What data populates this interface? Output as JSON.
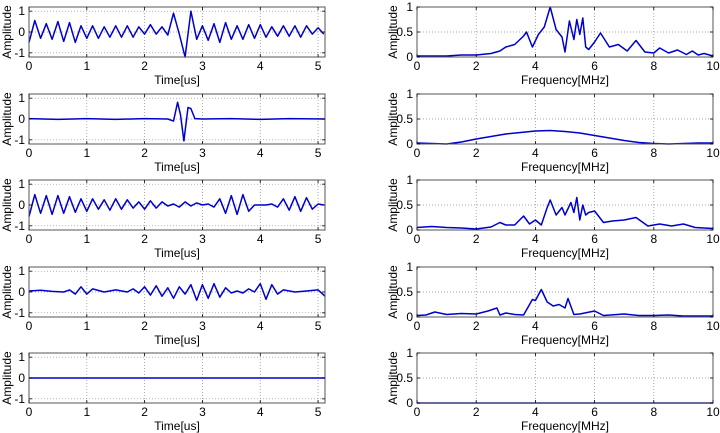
{
  "colors": {
    "line": "#0000cc",
    "axes": "#000000",
    "grid": "#888888",
    "background": "#ffffff"
  },
  "chart_data": [
    {
      "type": "line",
      "panel": "time-1",
      "xlabel": "Time[us]",
      "ylabel": "Amplitude",
      "xlim": [
        0,
        5.12
      ],
      "ylim": [
        -1.2,
        1.2
      ],
      "xticks": [
        0,
        1,
        2,
        3,
        4,
        5
      ],
      "yticks": [
        -1,
        0,
        1
      ],
      "yticklabels": [
        "-1",
        "0",
        "1"
      ],
      "grid": true,
      "description": "Continuous oscillation amplitude ~0.4-0.5 throughout with a large bipolar pulse near t=2.6-2.8us reaching +1 and -1.2",
      "x": [
        0,
        0.1,
        0.2,
        0.3,
        0.4,
        0.5,
        0.6,
        0.7,
        0.8,
        0.9,
        1.0,
        1.1,
        1.2,
        1.3,
        1.4,
        1.5,
        1.6,
        1.7,
        1.8,
        1.9,
        2.0,
        2.1,
        2.2,
        2.3,
        2.4,
        2.5,
        2.6,
        2.7,
        2.8,
        2.9,
        3.0,
        3.1,
        3.2,
        3.3,
        3.4,
        3.5,
        3.6,
        3.7,
        3.8,
        3.9,
        4.0,
        4.1,
        4.2,
        4.3,
        4.4,
        4.5,
        4.6,
        4.7,
        4.8,
        4.9,
        5.0,
        5.1
      ],
      "y": [
        -0.5,
        0.55,
        -0.3,
        0.4,
        -0.35,
        0.5,
        -0.45,
        0.45,
        -0.5,
        0.3,
        -0.3,
        0.3,
        -0.3,
        0.25,
        -0.25,
        0.3,
        -0.25,
        0.3,
        -0.25,
        0.25,
        -0.1,
        0.35,
        -0.1,
        0.25,
        -0.15,
        0.9,
        -0.1,
        -1.2,
        1.0,
        -0.35,
        0.3,
        -0.4,
        0.4,
        -0.5,
        0.45,
        -0.35,
        0.3,
        -0.35,
        0.35,
        -0.3,
        0.35,
        -0.25,
        0.25,
        -0.2,
        0.3,
        -0.2,
        0.3,
        -0.25,
        0.3,
        -0.1,
        0.2,
        -0.1
      ]
    },
    {
      "type": "line",
      "panel": "freq-1",
      "xlabel": "Frequency[MHz]",
      "ylabel": "Amplitude",
      "xlim": [
        0,
        10
      ],
      "ylim": [
        0,
        1
      ],
      "xticks": [
        0,
        2,
        4,
        6,
        8,
        10
      ],
      "yticks": [
        0,
        0.5,
        1
      ],
      "yticklabels": [
        "0",
        "0.5",
        "1"
      ],
      "grid": true,
      "x": [
        0,
        0.5,
        1,
        1.5,
        2,
        2.5,
        2.8,
        3.0,
        3.3,
        3.6,
        3.7,
        3.9,
        4.1,
        4.3,
        4.5,
        4.7,
        4.9,
        5.0,
        5.15,
        5.3,
        5.4,
        5.5,
        5.6,
        5.7,
        5.8,
        6.0,
        6.2,
        6.5,
        6.8,
        7.1,
        7.4,
        7.7,
        8.0,
        8.2,
        8.5,
        8.8,
        9.1,
        9.3,
        9.5,
        9.7,
        10
      ],
      "y": [
        0.02,
        0.02,
        0.02,
        0.04,
        0.04,
        0.07,
        0.12,
        0.2,
        0.25,
        0.42,
        0.5,
        0.2,
        0.45,
        0.6,
        1.0,
        0.55,
        0.4,
        0.1,
        0.72,
        0.35,
        0.75,
        0.45,
        0.78,
        0.2,
        0.15,
        0.3,
        0.48,
        0.2,
        0.25,
        0.12,
        0.33,
        0.1,
        0.08,
        0.18,
        0.08,
        0.14,
        0.05,
        0.12,
        0.04,
        0.07,
        0.02
      ]
    },
    {
      "type": "line",
      "panel": "time-2",
      "xlabel": "Time[us]",
      "ylabel": "Amplitude",
      "xlim": [
        0,
        5.12
      ],
      "ylim": [
        -1.2,
        1.2
      ],
      "xticks": [
        0,
        1,
        2,
        3,
        4,
        5
      ],
      "yticks": [
        -1,
        0,
        1
      ],
      "yticklabels": [
        "-1",
        "0",
        "1"
      ],
      "grid": true,
      "description": "Near-zero noisy baseline with a single pulse near t=2.5-2.8us (+0.8, -1.05, +0.6)",
      "x": [
        0,
        0.5,
        1.0,
        1.5,
        2.0,
        2.4,
        2.5,
        2.57,
        2.62,
        2.68,
        2.75,
        2.8,
        2.87,
        3.0,
        3.5,
        4.0,
        4.5,
        5.12
      ],
      "y": [
        0.02,
        -0.02,
        0.02,
        -0.02,
        0.02,
        0.0,
        -0.1,
        0.8,
        0.2,
        -1.05,
        0.55,
        0.5,
        0.02,
        0.0,
        0.02,
        -0.02,
        0.02,
        0.0
      ]
    },
    {
      "type": "line",
      "panel": "freq-2",
      "xlabel": "Frequency[MHz]",
      "ylabel": "Amplitude",
      "xlim": [
        0,
        10
      ],
      "ylim": [
        0,
        1
      ],
      "xticks": [
        0,
        2,
        4,
        6,
        8,
        10
      ],
      "yticks": [
        0,
        0.5,
        1
      ],
      "yticklabels": [
        "0",
        "0.5",
        "1"
      ],
      "grid": true,
      "x": [
        0,
        0.5,
        1,
        1.5,
        2,
        2.5,
        3,
        3.5,
        4,
        4.5,
        5,
        5.5,
        6,
        6.5,
        7,
        7.5,
        8,
        8.5,
        9,
        9.5,
        10
      ],
      "y": [
        0.02,
        0.01,
        0.0,
        0.04,
        0.1,
        0.15,
        0.2,
        0.23,
        0.26,
        0.27,
        0.25,
        0.22,
        0.17,
        0.12,
        0.07,
        0.03,
        0.01,
        0.0,
        0.01,
        0.02,
        0.02
      ]
    },
    {
      "type": "line",
      "panel": "time-3",
      "xlabel": "Time[us]",
      "ylabel": "Amplitude",
      "xlim": [
        0,
        5.12
      ],
      "ylim": [
        -1.2,
        1.2
      ],
      "xticks": [
        0,
        1,
        2,
        3,
        4,
        5
      ],
      "yticks": [
        -1,
        0,
        1
      ],
      "yticklabels": [
        "-1",
        "0",
        "1"
      ],
      "grid": true,
      "x": [
        0,
        0.1,
        0.2,
        0.3,
        0.4,
        0.5,
        0.6,
        0.7,
        0.8,
        0.9,
        1.0,
        1.1,
        1.2,
        1.3,
        1.4,
        1.5,
        1.6,
        1.7,
        1.8,
        1.9,
        2.0,
        2.1,
        2.2,
        2.3,
        2.4,
        2.5,
        2.6,
        2.7,
        2.8,
        2.9,
        3.0,
        3.1,
        3.2,
        3.3,
        3.4,
        3.5,
        3.6,
        3.7,
        3.8,
        3.9,
        4.0,
        4.1,
        4.2,
        4.3,
        4.4,
        4.5,
        4.6,
        4.7,
        4.8,
        4.9,
        5.0,
        5.1
      ],
      "y": [
        -0.55,
        0.5,
        -0.4,
        0.45,
        -0.45,
        0.45,
        -0.4,
        0.4,
        -0.35,
        0.3,
        -0.3,
        0.3,
        -0.2,
        0.25,
        -0.25,
        0.3,
        -0.2,
        0.25,
        -0.15,
        0.15,
        -0.2,
        0.2,
        -0.15,
        0.15,
        -0.05,
        0.05,
        -0.1,
        0.15,
        -0.05,
        0.1,
        0.0,
        0.05,
        -0.1,
        0.3,
        -0.4,
        0.45,
        -0.45,
        0.5,
        -0.3,
        0.0,
        0.0,
        0.0,
        0.05,
        -0.1,
        0.3,
        -0.25,
        0.4,
        -0.3,
        0.35,
        -0.2,
        0.05,
        0.0
      ]
    },
    {
      "type": "line",
      "panel": "freq-3",
      "xlabel": "Frequency[MHz]",
      "ylabel": "Amplitude",
      "xlim": [
        0,
        10
      ],
      "ylim": [
        0,
        1
      ],
      "xticks": [
        0,
        2,
        4,
        6,
        8,
        10
      ],
      "yticks": [
        0,
        0.5,
        1
      ],
      "yticklabels": [
        "0",
        "0.5",
        "1"
      ],
      "grid": true,
      "x": [
        0,
        0.5,
        1,
        1.5,
        2,
        2.5,
        2.8,
        3.0,
        3.3,
        3.6,
        3.8,
        4.0,
        4.2,
        4.4,
        4.5,
        4.7,
        4.9,
        5.0,
        5.2,
        5.3,
        5.4,
        5.5,
        5.6,
        5.7,
        5.8,
        6.0,
        6.3,
        6.6,
        7.0,
        7.4,
        7.8,
        8.2,
        8.6,
        9.0,
        9.4,
        10
      ],
      "y": [
        0.05,
        0.07,
        0.05,
        0.04,
        0.02,
        0.06,
        0.15,
        0.1,
        0.1,
        0.28,
        0.12,
        0.2,
        0.1,
        0.45,
        0.6,
        0.3,
        0.45,
        0.3,
        0.55,
        0.35,
        0.65,
        0.2,
        0.5,
        0.3,
        0.35,
        0.38,
        0.15,
        0.18,
        0.2,
        0.25,
        0.08,
        0.12,
        0.08,
        0.12,
        0.05,
        0.03
      ]
    },
    {
      "type": "line",
      "panel": "time-4",
      "xlabel": "Time[us]",
      "ylabel": "Amplitude",
      "xlim": [
        0,
        5.12
      ],
      "ylim": [
        -1.2,
        1.2
      ],
      "xticks": [
        0,
        1,
        2,
        3,
        4,
        5
      ],
      "yticks": [
        -1,
        0,
        1
      ],
      "yticklabels": [
        "-1",
        "0",
        "1"
      ],
      "grid": true,
      "x": [
        0,
        0.2,
        0.4,
        0.6,
        0.7,
        0.8,
        0.9,
        1.0,
        1.1,
        1.3,
        1.5,
        1.7,
        1.8,
        1.9,
        2.0,
        2.1,
        2.2,
        2.3,
        2.4,
        2.5,
        2.6,
        2.7,
        2.8,
        2.9,
        3.0,
        3.1,
        3.2,
        3.3,
        3.4,
        3.5,
        3.6,
        3.7,
        3.8,
        3.9,
        4.0,
        4.1,
        4.2,
        4.3,
        4.4,
        4.6,
        4.8,
        5.0,
        5.12
      ],
      "y": [
        0.05,
        0.08,
        0.03,
        0.0,
        0.1,
        -0.1,
        0.25,
        -0.1,
        0.15,
        0.0,
        0.1,
        0.0,
        0.15,
        -0.05,
        0.25,
        -0.15,
        0.3,
        -0.2,
        0.2,
        -0.3,
        0.25,
        -0.1,
        0.35,
        -0.4,
        0.35,
        -0.3,
        0.4,
        -0.25,
        0.2,
        -0.05,
        0.05,
        -0.05,
        0.15,
        0.0,
        0.4,
        -0.35,
        0.35,
        -0.1,
        0.1,
        0.0,
        0.05,
        0.1,
        -0.2
      ]
    },
    {
      "type": "line",
      "panel": "freq-4",
      "xlabel": "Frequency[MHz]",
      "ylabel": "Amplitude",
      "xlim": [
        0,
        10
      ],
      "ylim": [
        0,
        1
      ],
      "xticks": [
        0,
        2,
        4,
        6,
        8,
        10
      ],
      "yticks": [
        0,
        0.5,
        1
      ],
      "yticklabels": [
        "0",
        "0.5",
        "1"
      ],
      "grid": true,
      "x": [
        0,
        0.3,
        0.6,
        1.0,
        1.5,
        2.0,
        2.4,
        2.7,
        2.8,
        3.0,
        3.3,
        3.6,
        3.9,
        4.0,
        4.2,
        4.4,
        4.6,
        4.8,
        5.0,
        5.1,
        5.3,
        5.5,
        6.0,
        6.3,
        7.0,
        7.5,
        8.0,
        8.5,
        9.0,
        10
      ],
      "y": [
        0.03,
        0.04,
        0.1,
        0.05,
        0.07,
        0.06,
        0.12,
        0.18,
        0.04,
        0.08,
        0.05,
        0.04,
        0.35,
        0.33,
        0.55,
        0.3,
        0.22,
        0.25,
        0.18,
        0.37,
        0.05,
        0.06,
        0.12,
        0.03,
        0.06,
        0.03,
        0.03,
        0.04,
        0.02,
        0.02
      ]
    },
    {
      "type": "line",
      "panel": "time-5",
      "xlabel": "Time[us]",
      "ylabel": "Amplitude",
      "xlim": [
        0,
        5.12
      ],
      "ylim": [
        -1.2,
        1.2
      ],
      "xticks": [
        0,
        1,
        2,
        3,
        4,
        5
      ],
      "yticks": [
        -1,
        0,
        1
      ],
      "yticklabels": [
        "-1",
        "0",
        "1"
      ],
      "grid": true,
      "x": [
        0,
        5.12
      ],
      "y": [
        0,
        0
      ]
    },
    {
      "type": "line",
      "panel": "freq-5",
      "xlabel": "Frequency[MHz]",
      "ylabel": "Amplitude",
      "xlim": [
        0,
        10
      ],
      "ylim": [
        0,
        1
      ],
      "xticks": [
        0,
        2,
        4,
        6,
        8,
        10
      ],
      "yticks": [
        0,
        0.5,
        1
      ],
      "yticklabels": [
        "0",
        "0.5",
        "1"
      ],
      "grid": true,
      "x": [
        0,
        10
      ],
      "y": [
        0,
        0
      ]
    }
  ]
}
